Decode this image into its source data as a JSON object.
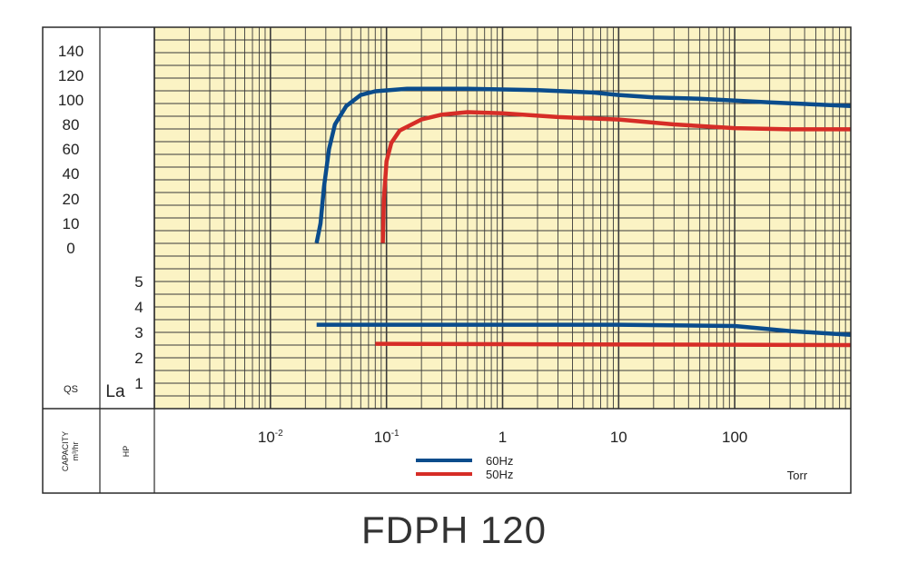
{
  "colors": {
    "plot_background": "#fbf3c4",
    "grid": "#3a3a3a",
    "frame": "#2a2a2a",
    "series_60hz": "#0a4c8c",
    "series_50hz": "#d62d27"
  },
  "chart_data": {
    "type": "line",
    "title": "FDPH 120",
    "x_scale": "log",
    "xlim": [
      0.001,
      1000
    ],
    "x_tick_labels": [
      {
        "value": 0.01,
        "base": "10",
        "exp": "-2"
      },
      {
        "value": 0.1,
        "base": "10",
        "exp": "-1"
      },
      {
        "value": 1,
        "label": "1"
      },
      {
        "value": 10,
        "label": "10"
      },
      {
        "value": 100,
        "label": "100"
      }
    ],
    "x_unit": "Torr",
    "capacity_axis": {
      "labels": [
        "140",
        "120",
        "100",
        "80",
        "60",
        "40",
        "20",
        "10",
        "0"
      ],
      "column_label": "QS",
      "bottom_label_line1": "CAPACITY",
      "bottom_label_line2": "m³/hr"
    },
    "power_axis": {
      "labels": [
        "5",
        "4",
        "3",
        "2",
        "1"
      ],
      "column_label": "La",
      "bottom_label": "HP"
    },
    "grid": true,
    "legend": {
      "placement": "bottom-center",
      "entries": [
        {
          "name": "60Hz",
          "color": "#0a4c8c"
        },
        {
          "name": "50Hz",
          "color": "#d62d27"
        }
      ]
    },
    "series": [
      {
        "name": "60Hz",
        "quantity": "capacity",
        "color": "#0a4c8c",
        "points": [
          [
            0.025,
            2
          ],
          [
            0.027,
            10
          ],
          [
            0.029,
            30
          ],
          [
            0.032,
            60
          ],
          [
            0.036,
            80
          ],
          [
            0.045,
            95
          ],
          [
            0.06,
            104
          ],
          [
            0.08,
            107
          ],
          [
            0.15,
            109
          ],
          [
            0.5,
            109
          ],
          [
            2,
            108
          ],
          [
            6,
            106
          ],
          [
            10,
            104
          ],
          [
            20,
            102
          ],
          [
            50,
            101
          ],
          [
            200,
            98
          ],
          [
            1000,
            95
          ]
        ]
      },
      {
        "name": "50Hz",
        "quantity": "capacity",
        "color": "#d62d27",
        "points": [
          [
            0.093,
            2
          ],
          [
            0.095,
            20
          ],
          [
            0.1,
            50
          ],
          [
            0.11,
            65
          ],
          [
            0.13,
            75
          ],
          [
            0.2,
            84
          ],
          [
            0.3,
            88
          ],
          [
            0.5,
            90
          ],
          [
            1,
            89
          ],
          [
            3,
            86
          ],
          [
            10,
            84
          ],
          [
            30,
            80
          ],
          [
            100,
            77
          ],
          [
            300,
            76
          ],
          [
            1000,
            76
          ]
        ]
      },
      {
        "name": "60Hz",
        "quantity": "power",
        "color": "#0a4c8c",
        "points": [
          [
            0.025,
            3.3
          ],
          [
            10,
            3.3
          ],
          [
            100,
            3.25
          ],
          [
            300,
            3.05
          ],
          [
            1000,
            2.9
          ]
        ]
      },
      {
        "name": "50Hz",
        "quantity": "power",
        "color": "#d62d27",
        "points": [
          [
            0.08,
            2.55
          ],
          [
            1000,
            2.5
          ]
        ]
      }
    ]
  }
}
